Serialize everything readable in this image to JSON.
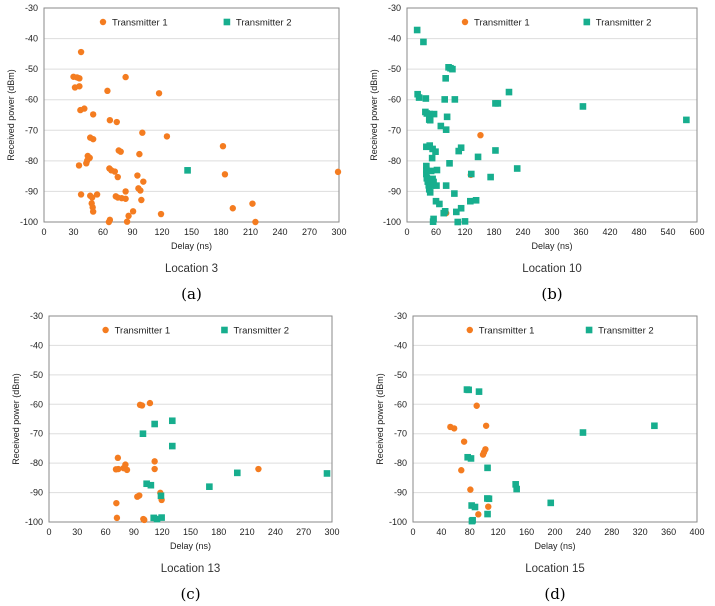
{
  "colors": {
    "transmitter1": "#F47C20",
    "transmitter2": "#17AE8E",
    "grid": "#DDDDDD",
    "frame": "#8A8A8A"
  },
  "chart_data": [
    {
      "type": "scatter",
      "panel_label": "(a)",
      "title": "Location 3",
      "xlabel": "Delay (ns)",
      "ylabel": "Received power (dBm)",
      "xlim": [
        0,
        300
      ],
      "ylim": [
        -100,
        -30
      ],
      "xticks": [
        0,
        30,
        60,
        90,
        120,
        150,
        180,
        210,
        240,
        270,
        300
      ],
      "yticks": [
        -30,
        -40,
        -50,
        -60,
        -70,
        -80,
        -90,
        -100
      ],
      "grid": "horizontal",
      "legend": "top",
      "series": [
        {
          "name": "Transmitter 1",
          "marker": "circle",
          "points": [
            [
              37.7,
              -44.4
            ],
            [
              30,
              -52.5
            ],
            [
              33.6,
              -52.7
            ],
            [
              36,
              -53
            ],
            [
              31.5,
              -56
            ],
            [
              36,
              -55.6
            ],
            [
              83,
              -52.6
            ],
            [
              64.5,
              -57.1
            ],
            [
              117,
              -57.9
            ],
            [
              37,
              -63.4
            ],
            [
              41,
              -62.9
            ],
            [
              50,
              -64.8
            ],
            [
              67,
              -66.7
            ],
            [
              74,
              -67.3
            ],
            [
              100,
              -70.8
            ],
            [
              125,
              -72
            ],
            [
              47,
              -72.4
            ],
            [
              50,
              -72.9
            ],
            [
              76,
              -76.6
            ],
            [
              78,
              -77
            ],
            [
              97,
              -77.8
            ],
            [
              182,
              -75.2
            ],
            [
              44.5,
              -78.4
            ],
            [
              46.5,
              -79
            ],
            [
              44,
              -79.9
            ],
            [
              43,
              -80.8
            ],
            [
              35.6,
              -81.5
            ],
            [
              66.5,
              -82.5
            ],
            [
              68.5,
              -83.1
            ],
            [
              72,
              -83.5
            ],
            [
              75,
              -85.3
            ],
            [
              95,
              -84.8
            ],
            [
              101,
              -86.8
            ],
            [
              184,
              -84.4
            ],
            [
              299,
              -83.6
            ],
            [
              37.7,
              -91
            ],
            [
              47,
              -91.4
            ],
            [
              49,
              -92
            ],
            [
              54,
              -91
            ],
            [
              73,
              -91.6
            ],
            [
              75,
              -92
            ],
            [
              79,
              -92.2
            ],
            [
              83,
              -92.4
            ],
            [
              83,
              -90
            ],
            [
              96,
              -89
            ],
            [
              98,
              -89.7
            ],
            [
              99,
              -92.8
            ],
            [
              48.5,
              -93.9
            ],
            [
              49.5,
              -95.2
            ],
            [
              50,
              -96.6
            ],
            [
              90.6,
              -96.5
            ],
            [
              86,
              -98
            ],
            [
              67,
              -99.3
            ],
            [
              66,
              -100
            ],
            [
              84.5,
              -99.9
            ],
            [
              119,
              -97.4
            ],
            [
              192,
              -95.5
            ],
            [
              212,
              -94
            ],
            [
              215,
              -100
            ]
          ]
        },
        {
          "name": "Transmitter 2",
          "marker": "square",
          "points": [
            [
              146,
              -83.1
            ]
          ]
        }
      ]
    },
    {
      "type": "scatter",
      "panel_label": "(b)",
      "title": "Location 10",
      "xlabel": "Delay (ns)",
      "ylabel": "Received power (dBm)",
      "xlim": [
        0,
        600
      ],
      "ylim": [
        -100,
        -30
      ],
      "xticks": [
        0,
        60,
        120,
        180,
        240,
        300,
        360,
        420,
        480,
        540,
        600
      ],
      "yticks": [
        -30,
        -40,
        -50,
        -60,
        -70,
        -80,
        -90,
        -100
      ],
      "grid": "horizontal",
      "legend": "top",
      "series": [
        {
          "name": "Transmitter 1",
          "marker": "circle",
          "points": [
            [
              152,
              -71.6
            ],
            [
              132,
              -84.6
            ],
            [
              81,
              -97.1
            ]
          ]
        },
        {
          "name": "Transmitter 2",
          "marker": "square",
          "points": [
            [
              21,
              -37.2
            ],
            [
              34,
              -41.1
            ],
            [
              86,
              -49.4
            ],
            [
              90,
              -49.7
            ],
            [
              94,
              -50
            ],
            [
              80,
              -53
            ],
            [
              22,
              -58.2
            ],
            [
              25,
              -59.3
            ],
            [
              39,
              -59.6
            ],
            [
              78,
              -59.9
            ],
            [
              99,
              -59.9
            ],
            [
              211,
              -57.5
            ],
            [
              183,
              -61.2
            ],
            [
              188,
              -61.2
            ],
            [
              364,
              -62.2
            ],
            [
              578,
              -66.6
            ],
            [
              38,
              -64
            ],
            [
              41,
              -64.5
            ],
            [
              47,
              -64.7
            ],
            [
              56,
              -64.7
            ],
            [
              46,
              -66.5
            ],
            [
              48,
              -66.7
            ],
            [
              83,
              -65.6
            ],
            [
              70,
              -68.6
            ],
            [
              81,
              -69.8
            ],
            [
              40,
              -75.4
            ],
            [
              47,
              -75
            ],
            [
              53,
              -76.1
            ],
            [
              59,
              -77
            ],
            [
              112,
              -75.7
            ],
            [
              107,
              -76.8
            ],
            [
              147,
              -78.7
            ],
            [
              183,
              -76.6
            ],
            [
              88,
              -80.8
            ],
            [
              228,
              -82.5
            ],
            [
              173,
              -85.3
            ],
            [
              133,
              -84.3
            ],
            [
              62,
              -83
            ],
            [
              40,
              -81.7
            ],
            [
              40,
              -83
            ],
            [
              40,
              -84.3
            ],
            [
              41,
              -85.7
            ],
            [
              43,
              -86.8
            ],
            [
              45,
              -88
            ],
            [
              46,
              -89.3
            ],
            [
              48,
              -90.3
            ],
            [
              52,
              -79.1
            ],
            [
              50,
              -83.3
            ],
            [
              53,
              -85.9
            ],
            [
              55,
              -86.9
            ],
            [
              50,
              -88.1
            ],
            [
              61,
              -88.1
            ],
            [
              81,
              -88.1
            ],
            [
              98,
              -90.7
            ],
            [
              60,
              -93.2
            ],
            [
              67,
              -94.1
            ],
            [
              76,
              -97.1
            ],
            [
              79,
              -96.5
            ],
            [
              102,
              -96.7
            ],
            [
              112,
              -95.5
            ],
            [
              131,
              -93.2
            ],
            [
              143,
              -92.9
            ],
            [
              55,
              -99
            ],
            [
              54,
              -99.9
            ],
            [
              105,
              -100
            ],
            [
              120,
              -99.8
            ]
          ]
        }
      ]
    },
    {
      "type": "scatter",
      "panel_label": "(c)",
      "title": "Location 13",
      "xlabel": "Delay (ns)",
      "ylabel": "Received power (dBm)",
      "xlim": [
        0,
        300
      ],
      "ylim": [
        -100,
        -30
      ],
      "xticks": [
        0,
        30,
        60,
        90,
        120,
        150,
        180,
        210,
        240,
        270,
        300
      ],
      "yticks": [
        -30,
        -40,
        -50,
        -60,
        -70,
        -80,
        -90,
        -100
      ],
      "grid": "horizontal",
      "legend": "top",
      "series": [
        {
          "name": "Transmitter 1",
          "marker": "circle",
          "points": [
            [
              96.5,
              -60.2
            ],
            [
              98.6,
              -60.4
            ],
            [
              107,
              -59.6
            ],
            [
              73,
              -78.2
            ],
            [
              81,
              -80.5
            ],
            [
              71,
              -82.1
            ],
            [
              73.5,
              -82
            ],
            [
              79,
              -81.7
            ],
            [
              82.7,
              -82.3
            ],
            [
              112,
              -79.4
            ],
            [
              112,
              -82
            ],
            [
              222,
              -82
            ],
            [
              93.6,
              -91.4
            ],
            [
              95.7,
              -91
            ],
            [
              118,
              -90.1
            ],
            [
              119.4,
              -92.5
            ],
            [
              71.4,
              -93.6
            ],
            [
              72,
              -98.6
            ],
            [
              100,
              -99
            ],
            [
              101,
              -99.3
            ]
          ]
        },
        {
          "name": "Transmitter 2",
          "marker": "square",
          "points": [
            [
              130.7,
              -65.6
            ],
            [
              112,
              -66.7
            ],
            [
              99.6,
              -70
            ],
            [
              130.7,
              -74.2
            ],
            [
              199.6,
              -83.3
            ],
            [
              294.7,
              -83.5
            ],
            [
              103.5,
              -87
            ],
            [
              108,
              -87.5
            ],
            [
              170,
              -88
            ],
            [
              118.7,
              -91.1
            ],
            [
              111,
              -98.6
            ],
            [
              114.5,
              -99
            ],
            [
              119.4,
              -98.5
            ]
          ]
        }
      ]
    },
    {
      "type": "scatter",
      "panel_label": "(d)",
      "title": "Location 15",
      "xlabel": "Delay (ns)",
      "ylabel": "Received power (dBm)",
      "xlim": [
        0,
        400
      ],
      "ylim": [
        -100,
        -30
      ],
      "xticks": [
        0,
        40,
        80,
        120,
        160,
        200,
        240,
        280,
        320,
        360,
        400
      ],
      "yticks": [
        -30,
        -40,
        -50,
        -60,
        -70,
        -80,
        -90,
        -100
      ],
      "grid": "horizontal",
      "legend": "top",
      "series": [
        {
          "name": "Transmitter 1",
          "marker": "circle",
          "points": [
            [
              89.7,
              -60.5
            ],
            [
              52.6,
              -67.7
            ],
            [
              58,
              -68.2
            ],
            [
              103,
              -67.3
            ],
            [
              72,
              -72.7
            ],
            [
              102,
              -75.3
            ],
            [
              100,
              -76.3
            ],
            [
              98.6,
              -77.1
            ],
            [
              68,
              -82.4
            ],
            [
              80.8,
              -89
            ],
            [
              106,
              -94.8
            ],
            [
              92,
              -97.4
            ]
          ]
        },
        {
          "name": "Transmitter 2",
          "marker": "square",
          "points": [
            [
              76,
              -55
            ],
            [
              78.4,
              -55.1
            ],
            [
              93,
              -55.7
            ],
            [
              239.4,
              -69.6
            ],
            [
              340,
              -67.3
            ],
            [
              77,
              -78
            ],
            [
              81.7,
              -78.4
            ],
            [
              105,
              -81.6
            ],
            [
              144.6,
              -87.2
            ],
            [
              146,
              -88.8
            ],
            [
              104.7,
              -92
            ],
            [
              107,
              -92.1
            ],
            [
              194,
              -93.5
            ],
            [
              82.6,
              -94.4
            ],
            [
              87.3,
              -94.9
            ],
            [
              105,
              -97.3
            ],
            [
              83,
              -99.7
            ],
            [
              84,
              -99.4
            ]
          ]
        }
      ]
    }
  ]
}
